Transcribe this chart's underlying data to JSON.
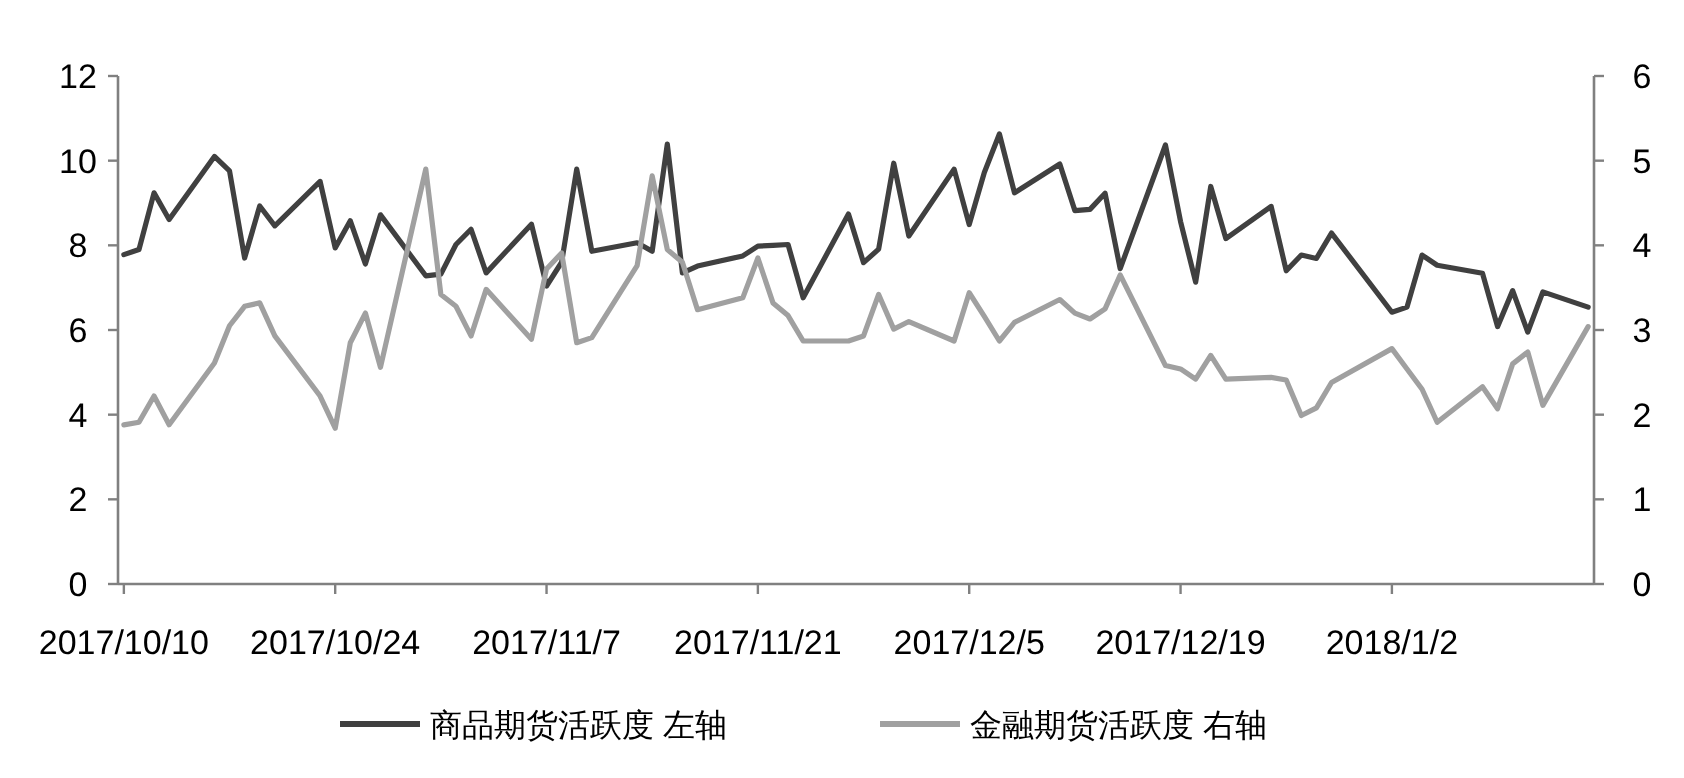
{
  "chart_data": {
    "type": "line",
    "x": [
      "2017-10-10",
      "2017-10-11",
      "2017-10-12",
      "2017-10-13",
      "2017-10-16",
      "2017-10-17",
      "2017-10-18",
      "2017-10-19",
      "2017-10-20",
      "2017-10-23",
      "2017-10-24",
      "2017-10-25",
      "2017-10-26",
      "2017-10-27",
      "2017-10-30",
      "2017-10-31",
      "2017-11-01",
      "2017-11-02",
      "2017-11-03",
      "2017-11-06",
      "2017-11-07",
      "2017-11-08",
      "2017-11-09",
      "2017-11-10",
      "2017-11-13",
      "2017-11-14",
      "2017-11-15",
      "2017-11-16",
      "2017-11-17",
      "2017-11-20",
      "2017-11-21",
      "2017-11-22",
      "2017-11-23",
      "2017-11-24",
      "2017-11-27",
      "2017-11-28",
      "2017-11-29",
      "2017-11-30",
      "2017-12-01",
      "2017-12-04",
      "2017-12-05",
      "2017-12-06",
      "2017-12-07",
      "2017-12-08",
      "2017-12-11",
      "2017-12-12",
      "2017-12-13",
      "2017-12-14",
      "2017-12-15",
      "2017-12-18",
      "2017-12-19",
      "2017-12-20",
      "2017-12-21",
      "2017-12-22",
      "2017-12-25",
      "2017-12-26",
      "2017-12-27",
      "2017-12-28",
      "2017-12-29",
      "2018-01-02",
      "2018-01-03",
      "2018-01-04",
      "2018-01-05",
      "2018-01-08",
      "2018-01-09",
      "2018-01-10",
      "2018-01-11",
      "2018-01-12",
      "2018-01-15"
    ],
    "series": [
      {
        "name": "商品期货活跃度 左轴",
        "color": "#404040",
        "values": [
          7.78,
          7.9,
          9.24,
          8.61,
          10.1,
          9.76,
          7.7,
          8.93,
          8.46,
          9.51,
          7.94,
          8.58,
          7.56,
          8.72,
          7.28,
          7.32,
          8.02,
          8.38,
          7.35,
          8.5,
          7.04,
          7.6,
          9.8,
          7.86,
          8.06,
          7.86,
          10.39,
          7.35,
          7.51,
          7.75,
          7.98,
          8.0,
          8.02,
          6.76,
          8.74,
          7.59,
          7.91,
          9.94,
          8.22,
          9.8,
          8.49,
          9.72,
          10.63,
          9.24,
          9.92,
          8.82,
          8.85,
          9.23,
          7.45,
          10.37,
          8.56,
          7.13,
          9.39,
          8.16,
          8.92,
          7.4,
          7.77,
          7.69,
          8.29,
          6.42,
          6.54,
          7.77,
          7.53,
          7.34,
          6.08,
          6.93,
          5.95,
          6.9,
          6.54
        ]
      },
      {
        "name": "金融期货活跃度 右轴",
        "color": "#a0a0a0",
        "axis": "y2",
        "values": [
          1.88,
          1.91,
          2.22,
          1.88,
          2.61,
          3.05,
          3.28,
          3.32,
          2.93,
          2.22,
          1.84,
          2.85,
          3.2,
          2.56,
          4.9,
          3.42,
          3.28,
          2.93,
          3.48,
          2.89,
          3.72,
          3.91,
          2.85,
          2.91,
          3.76,
          4.82,
          3.95,
          3.8,
          3.24,
          3.38,
          3.85,
          3.32,
          3.17,
          2.87,
          2.87,
          2.93,
          3.42,
          3.01,
          3.1,
          2.87,
          3.44,
          3.16,
          2.87,
          3.09,
          3.36,
          3.2,
          3.13,
          3.25,
          3.65,
          2.58,
          2.54,
          2.42,
          2.7,
          2.42,
          2.44,
          2.41,
          1.99,
          2.08,
          2.38,
          2.78,
          2.54,
          2.3,
          1.91,
          2.33,
          2.07,
          2.6,
          2.74,
          2.11,
          3.04
        ]
      }
    ],
    "xlim": [
      "2017-10-10",
      "2018-01-15"
    ],
    "xticks": [
      {
        "value": "2017-10-10",
        "label": "2017/10/10"
      },
      {
        "value": "2017-10-24",
        "label": "2017/10/24"
      },
      {
        "value": "2017-11-07",
        "label": "2017/11/7"
      },
      {
        "value": "2017-11-21",
        "label": "2017/11/21"
      },
      {
        "value": "2017-12-05",
        "label": "2017/12/5"
      },
      {
        "value": "2017-12-19",
        "label": "2017/12/19"
      },
      {
        "value": "2018-01-02",
        "label": "2018/1/2"
      }
    ],
    "ylim": [
      0,
      12
    ],
    "yticks": [
      0,
      2,
      4,
      6,
      8,
      10,
      12
    ],
    "y2lim": [
      0,
      6
    ],
    "y2ticks": [
      0,
      1,
      2,
      3,
      4,
      5,
      6
    ],
    "legend": "bottom",
    "grid": false,
    "marker": "none",
    "line_style": "solid"
  }
}
